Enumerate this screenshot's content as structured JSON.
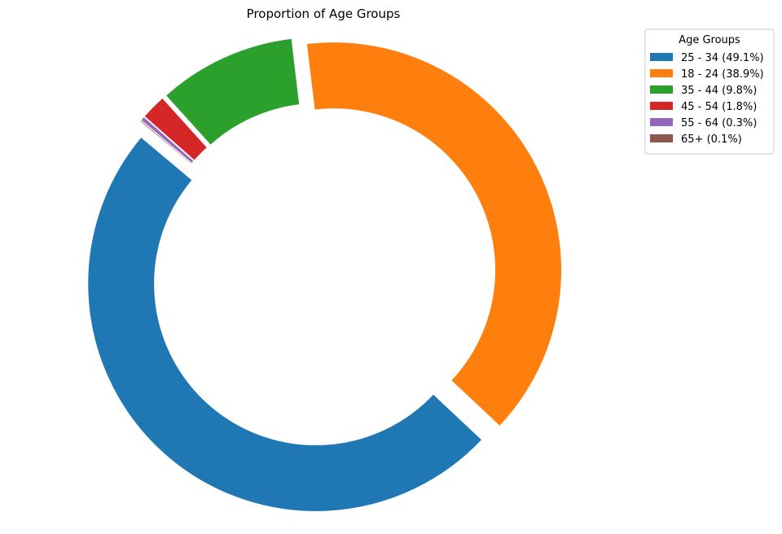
{
  "chart_data": {
    "type": "pie",
    "title": "Proportion of Age Groups",
    "legend_title": "Age Groups",
    "legend_position": "top-right",
    "style": "donut",
    "slices": [
      {
        "label": "25 - 34",
        "percent": 49.1,
        "legend_text": "25 - 34 (49.1%)",
        "color": "#1f77b4"
      },
      {
        "label": "18 - 24",
        "percent": 38.9,
        "legend_text": "18 - 24 (38.9%)",
        "color": "#ff7f0e"
      },
      {
        "label": "35 - 44",
        "percent": 9.8,
        "legend_text": "35 - 44 (9.8%)",
        "color": "#2ca02c"
      },
      {
        "label": "45 - 54",
        "percent": 1.8,
        "legend_text": "45 - 54 (1.8%)",
        "color": "#d62728"
      },
      {
        "label": "55 - 64",
        "percent": 0.3,
        "legend_text": "55 - 64 (0.3%)",
        "color": "#9467bd"
      },
      {
        "label": "65+",
        "percent": 0.1,
        "legend_text": "65+ (0.1%)",
        "color": "#8c564b"
      }
    ]
  }
}
